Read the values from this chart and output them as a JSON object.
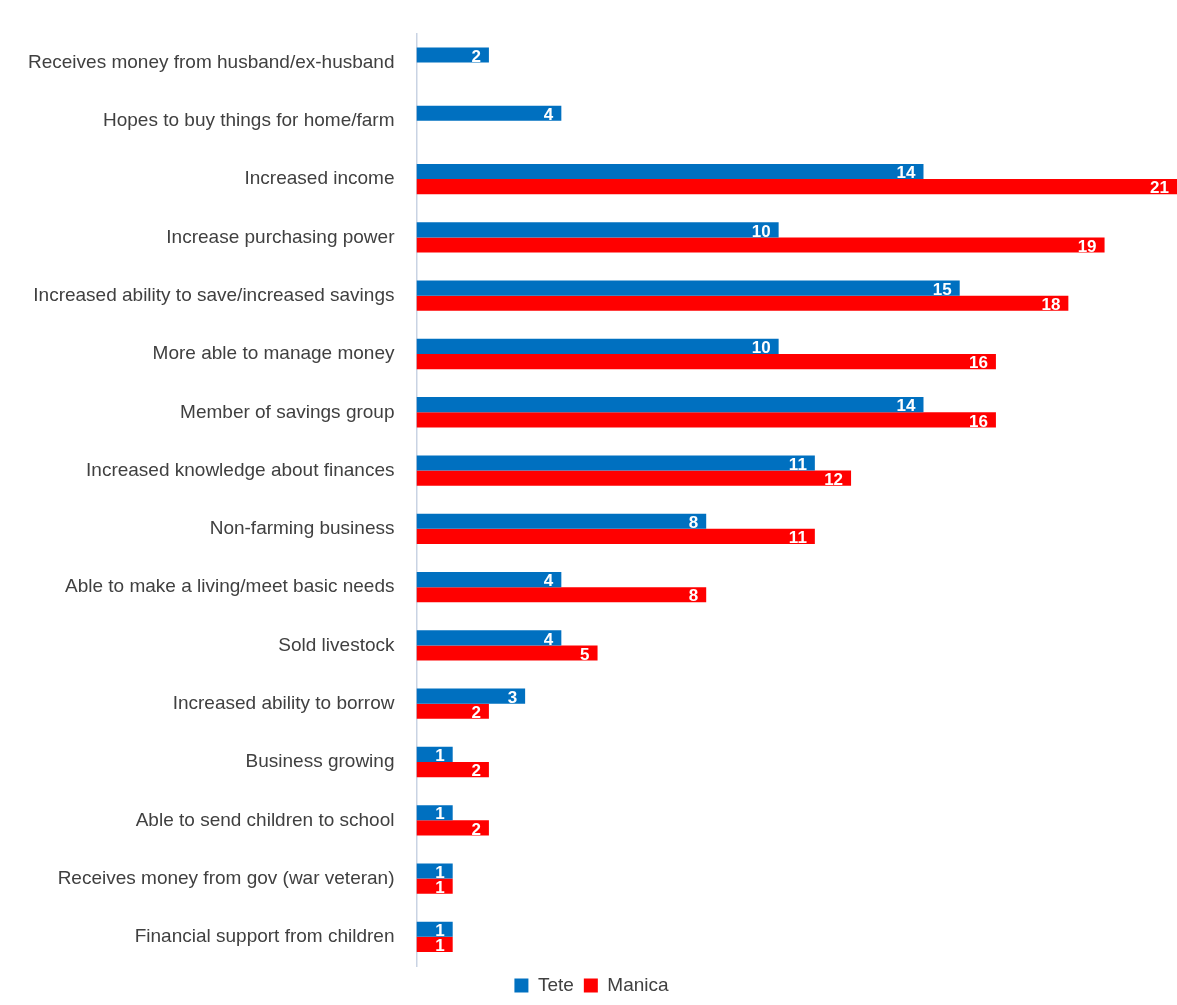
{
  "chart_data": {
    "type": "bar",
    "orientation": "horizontal",
    "categories": [
      "Receives money from husband/ex-husband",
      "Hopes to buy things for home/farm",
      "Increased income",
      "Increase purchasing power",
      "Increased ability to save/increased savings",
      "More able to manage money",
      "Member of savings group",
      "Increased knowledge about finances",
      "Non-farming business",
      "Able to make a living/meet basic needs",
      "Sold livestock",
      "Increased ability to borrow",
      "Business growing",
      "Able to send children to school",
      "Receives money from gov (war veteran)",
      "Financial support from children"
    ],
    "series": [
      {
        "name": "Tete",
        "color": "#0070c0",
        "values": [
          2,
          4,
          14,
          10,
          15,
          10,
          14,
          11,
          8,
          4,
          4,
          3,
          1,
          1,
          1,
          1
        ]
      },
      {
        "name": "Manica",
        "color": "#ff0000",
        "values": [
          null,
          null,
          21,
          19,
          18,
          16,
          16,
          12,
          11,
          8,
          5,
          2,
          2,
          2,
          1,
          1
        ]
      }
    ],
    "xlim": [
      0,
      21
    ],
    "tick_labels": "y",
    "grid": false,
    "legend": "bottom",
    "data_labels": true
  }
}
